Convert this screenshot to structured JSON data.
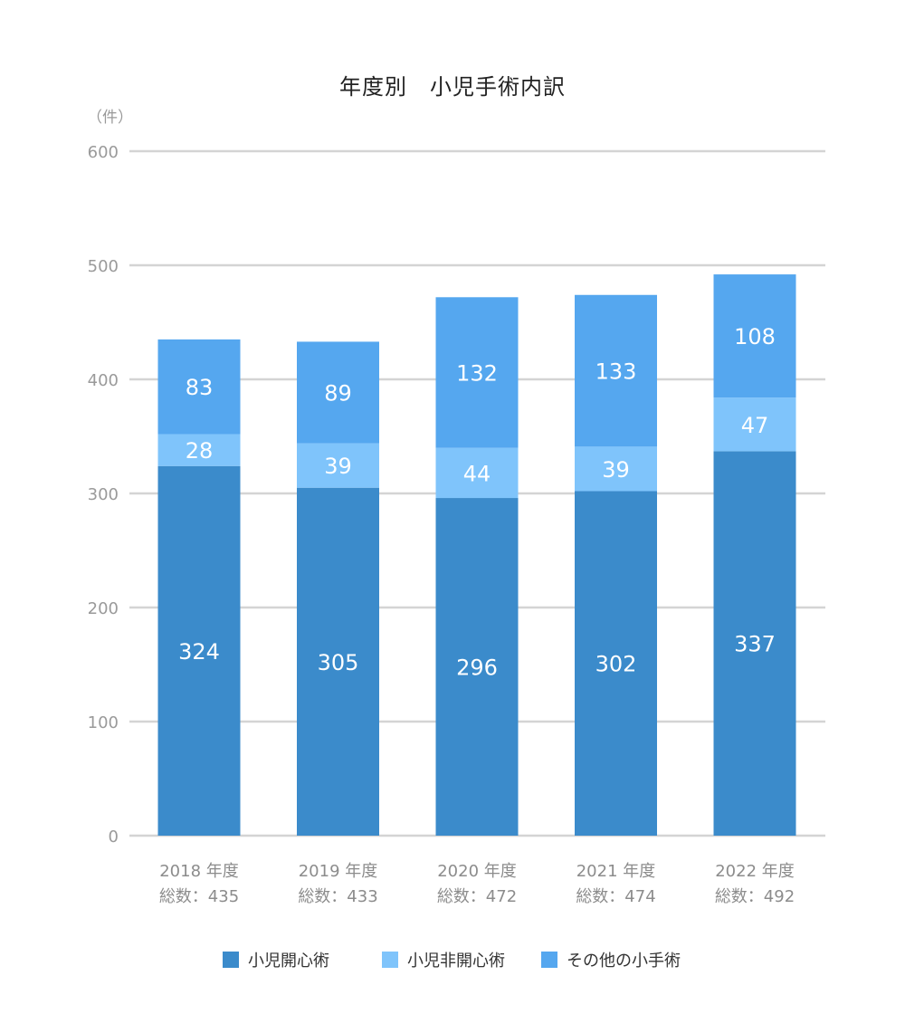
{
  "chart_data": {
    "type": "bar",
    "stacked": true,
    "title": "年度別　小児手術内訳",
    "ylabel": "（件）",
    "xlabel": "",
    "ylim": [
      0,
      600
    ],
    "yticks": [
      0,
      100,
      200,
      300,
      400,
      500,
      600
    ],
    "grid": true,
    "legend_position": "bottom",
    "categories": [
      "2018 年度",
      "2019 年度",
      "2020 年度",
      "2021 年度",
      "2022 年度"
    ],
    "totals_labels": [
      "総数：435",
      "総数：433",
      "総数：472",
      "総数：474",
      "総数：492"
    ],
    "series": [
      {
        "name": "小児開心術",
        "color": "#3b8bcb",
        "values": [
          324,
          305,
          296,
          302,
          337
        ]
      },
      {
        "name": "小児非開心術",
        "color": "#7fc4fb",
        "values": [
          28,
          39,
          44,
          39,
          47
        ]
      },
      {
        "name": "その他の小手術",
        "color": "#55a7ef",
        "values": [
          83,
          89,
          132,
          133,
          108
        ]
      }
    ]
  }
}
